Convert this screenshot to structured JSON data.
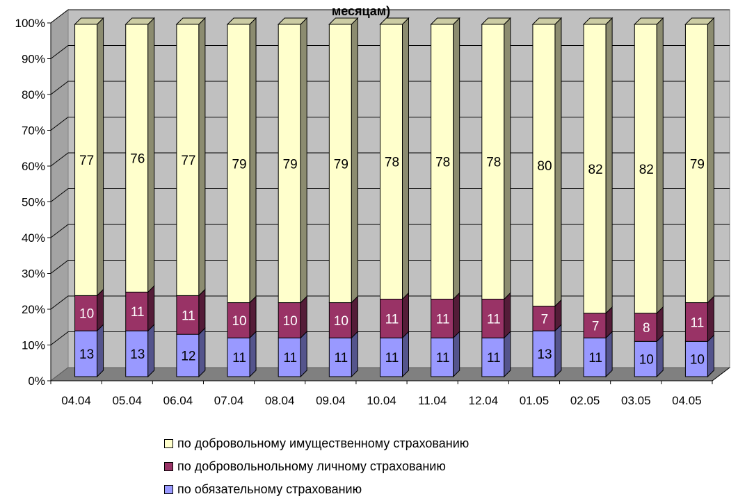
{
  "chart_data": {
    "type": "bar",
    "stacked": true,
    "percent_stacked": true,
    "three_d": true,
    "title": "месяцам)",
    "categories": [
      "04.04",
      "05.04",
      "06.04",
      "07.04",
      "08.04",
      "09.04",
      "10.04",
      "11.04",
      "12.04",
      "01.05",
      "02.05",
      "03.05",
      "04.05"
    ],
    "series": [
      {
        "name": "по обязательному страхованию",
        "values": [
          13,
          13,
          12,
          11,
          11,
          11,
          11,
          11,
          11,
          13,
          11,
          10,
          10
        ],
        "color": "#9999ff",
        "label_color": "#000000"
      },
      {
        "name": "по добровольнольному личному страхованию",
        "values": [
          10,
          11,
          11,
          10,
          10,
          10,
          11,
          11,
          11,
          7,
          7,
          8,
          11
        ],
        "color": "#993366",
        "label_color": "#ffffff"
      },
      {
        "name": "по добровольному имущественному страхованию",
        "values": [
          77,
          76,
          77,
          79,
          79,
          79,
          78,
          78,
          78,
          80,
          82,
          82,
          79
        ],
        "color": "#ffffcc",
        "label_color": "#000000"
      }
    ],
    "y_ticks": [
      "0%",
      "10%",
      "20%",
      "30%",
      "40%",
      "50%",
      "60%",
      "70%",
      "80%",
      "90%",
      "100%"
    ],
    "ylim": [
      0,
      100
    ],
    "grid": true,
    "legend_position": "bottom",
    "wall_color": "#c0c0c0",
    "floor_color": "#808080"
  }
}
